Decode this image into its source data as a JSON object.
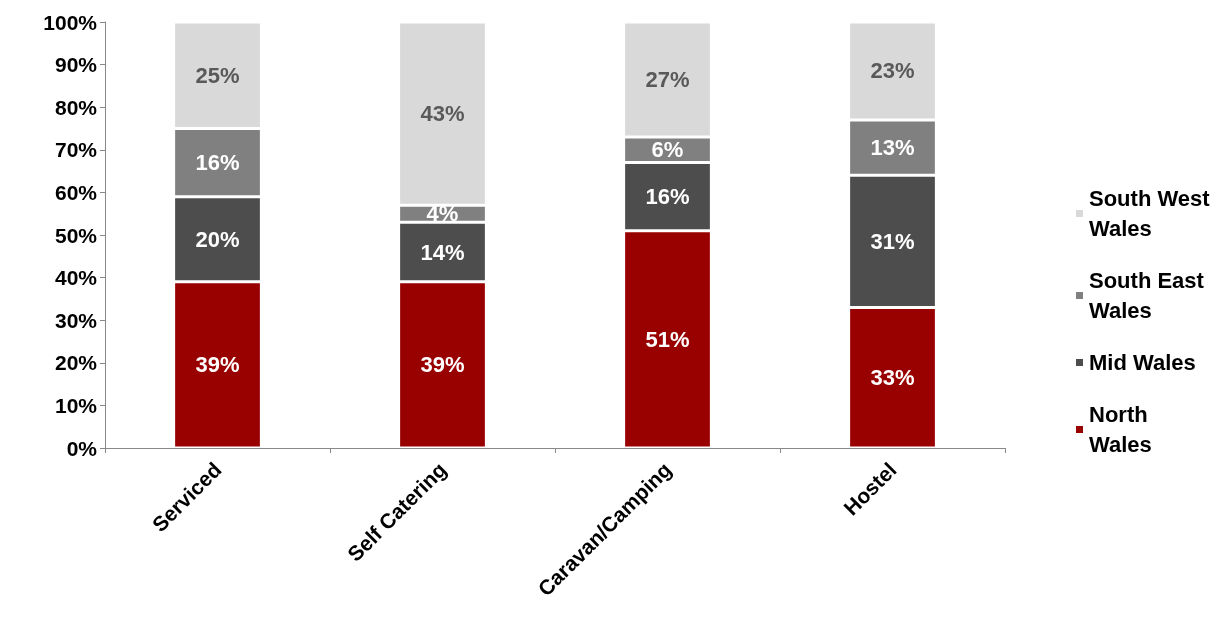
{
  "chart_data": {
    "type": "bar",
    "stacked": true,
    "categories": [
      "Serviced",
      "Self Catering",
      "Caravan/Camping",
      "Hostel"
    ],
    "series": [
      {
        "name": "North Wales",
        "color": "#990000",
        "values": [
          39,
          39,
          51,
          33
        ],
        "value_labels": [
          "39%",
          "39%",
          "51%",
          "33%"
        ]
      },
      {
        "name": "Mid Wales",
        "color": "#4d4d4d",
        "values": [
          20,
          14,
          16,
          31
        ],
        "value_labels": [
          "20%",
          "14%",
          "16%",
          "31%"
        ]
      },
      {
        "name": "South East Wales",
        "color": "#808080",
        "values": [
          16,
          4,
          6,
          13
        ],
        "value_labels": [
          "16%",
          "4%",
          "6%",
          "13%"
        ]
      },
      {
        "name": "South West Wales",
        "color": "#d9d9d9",
        "values": [
          25,
          43,
          27,
          23
        ],
        "value_labels": [
          "25%",
          "43%",
          "27%",
          "23%"
        ]
      }
    ],
    "ylim": [
      0,
      100
    ],
    "yticks": [
      {
        "value": 0,
        "label": "0%"
      },
      {
        "value": 10,
        "label": "10%"
      },
      {
        "value": 20,
        "label": "20%"
      },
      {
        "value": 30,
        "label": "30%"
      },
      {
        "value": 40,
        "label": "40%"
      },
      {
        "value": 50,
        "label": "50%"
      },
      {
        "value": 60,
        "label": "60%"
      },
      {
        "value": 70,
        "label": "70%"
      },
      {
        "value": 80,
        "label": "80%"
      },
      {
        "value": 90,
        "label": "90%"
      },
      {
        "value": 100,
        "label": "100%"
      }
    ],
    "grid": false,
    "legend": "right"
  }
}
